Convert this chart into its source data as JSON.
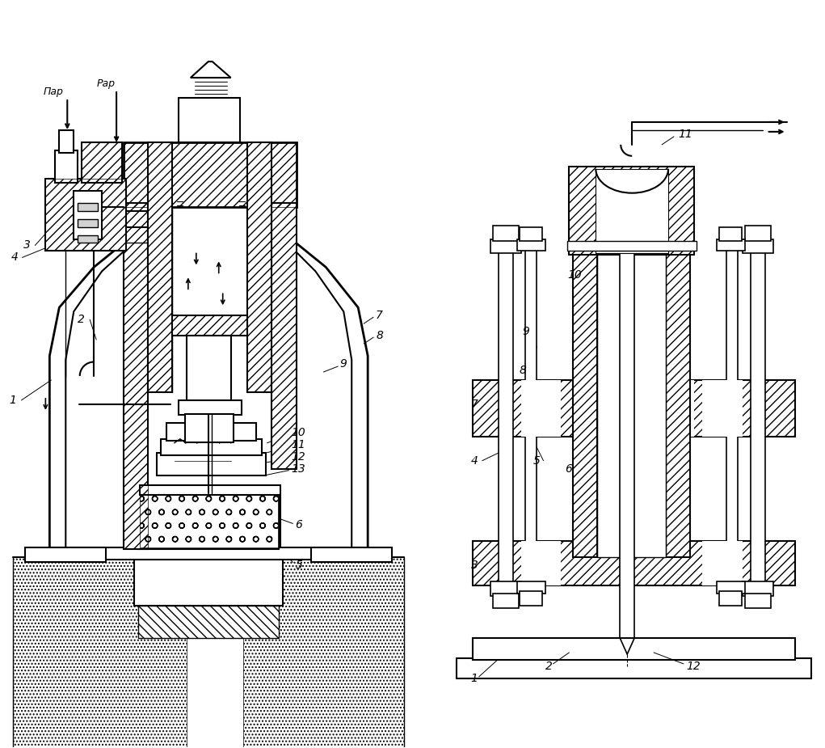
{
  "bg_color": "#ffffff",
  "fig_width": 10.21,
  "fig_height": 9.25,
  "dpi": 100
}
